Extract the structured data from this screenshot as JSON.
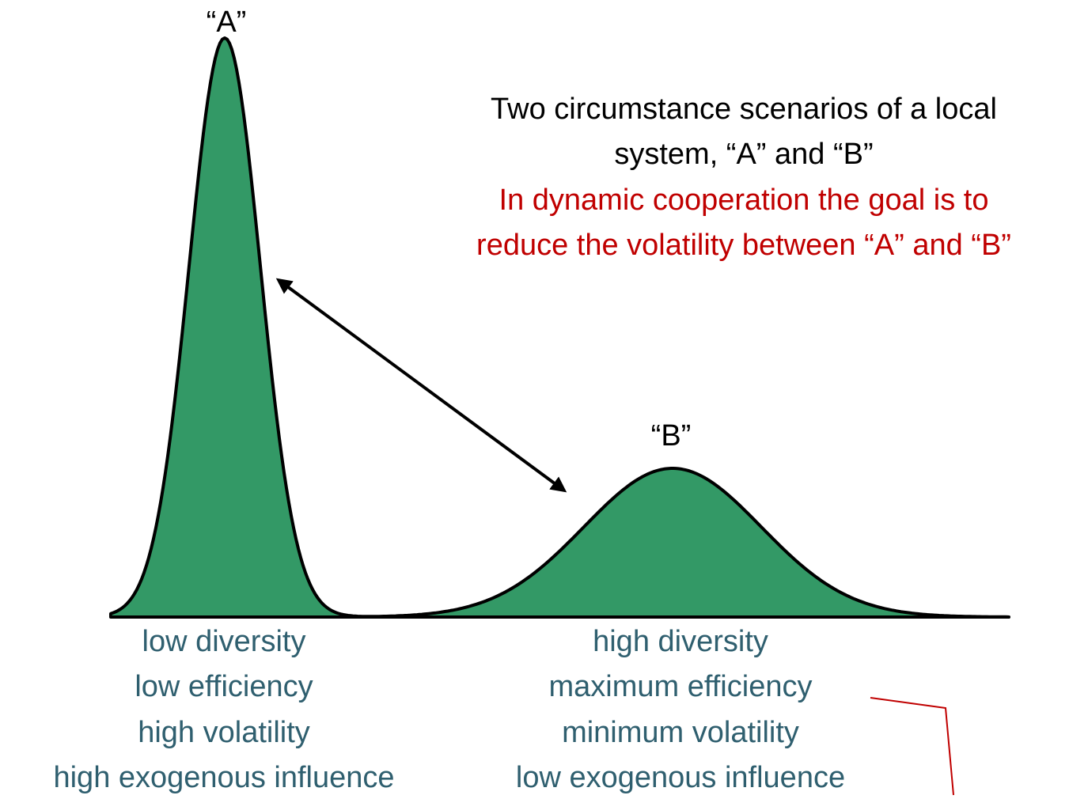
{
  "peaks": [
    {
      "label": "“A”",
      "traits": [
        "low diversity",
        "low efficiency",
        "high volatility",
        "high exogenous influence"
      ]
    },
    {
      "label": "“B”",
      "traits": [
        "high diversity",
        "maximum efficiency",
        "minimum volatility",
        "low exogenous influence"
      ]
    }
  ],
  "description": [
    "Two circumstance scenarios of a local",
    "system, “A” and “B”"
  ],
  "goal": [
    "In dynamic cooperation the goal is to",
    "reduce the volatility between “A” and “B”"
  ]
}
